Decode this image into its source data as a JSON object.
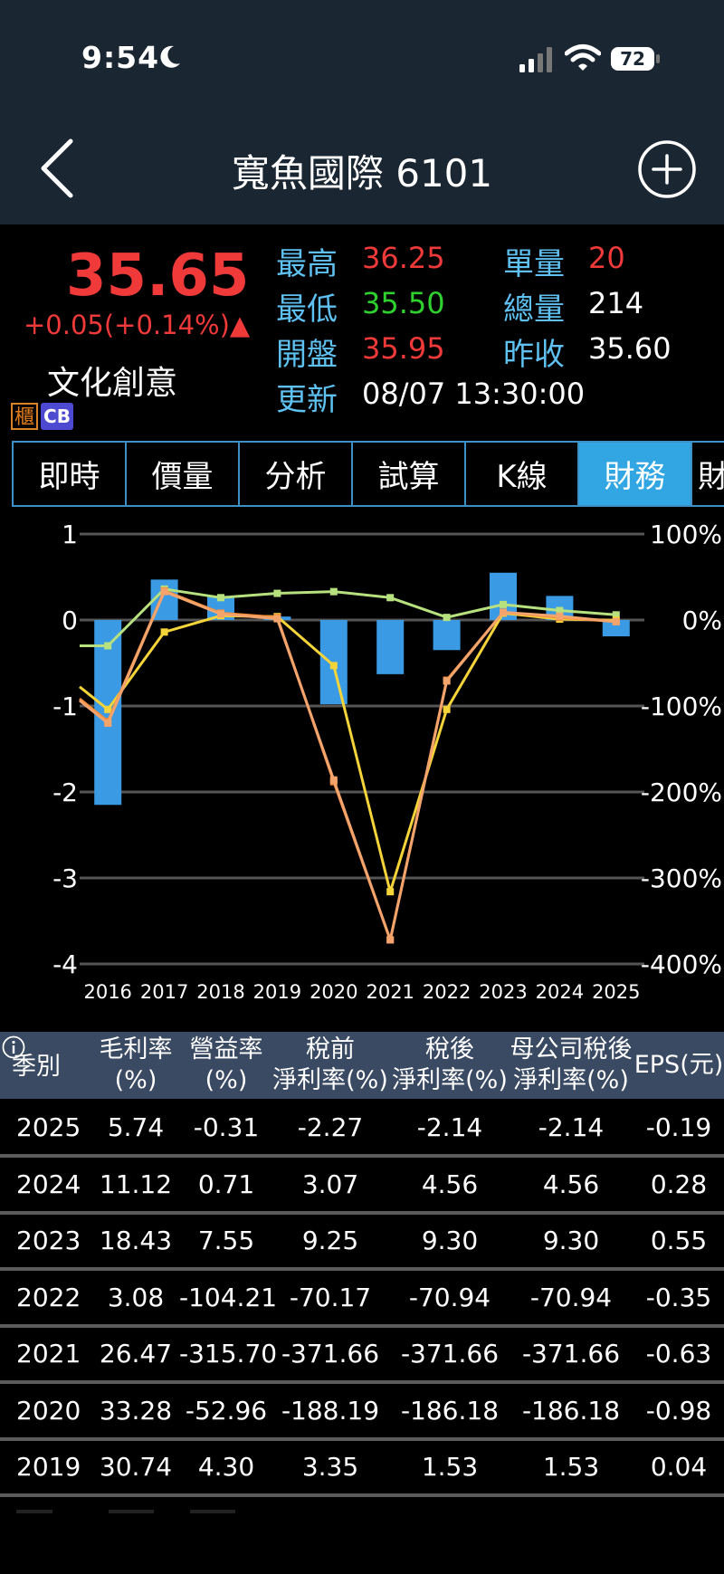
{
  "status": {
    "time": "9:54",
    "battery": "72"
  },
  "nav": {
    "title": "寬魚國際 6101"
  },
  "quote": {
    "price": "35.65",
    "change": "+0.05(+0.14%)▲",
    "industry": "文化創意",
    "badge_gui": "櫃",
    "badge_cb": "CB",
    "stats": {
      "high_label": "最高",
      "high": "36.25",
      "low_label": "最低",
      "low": "35.50",
      "open_label": "開盤",
      "open": "35.95",
      "update_label": "更新",
      "update": "08/07 13:30:00",
      "lot_label": "單量",
      "lot": "20",
      "vol_label": "總量",
      "vol": "214",
      "prev_label": "昨收",
      "prev": "35.60"
    }
  },
  "tabs": [
    "即時",
    "價量",
    "分析",
    "試算",
    "K線",
    "財務",
    "財"
  ],
  "active_tab": 5,
  "colors": {
    "bar": "#3a9be4",
    "gross": "#b7e07e",
    "operating": "#f5d43a",
    "pretax": "#f58e3b",
    "aftertax": "#f2a46c",
    "up": "#f03a3a",
    "down": "#2fd12f"
  },
  "chart_data": {
    "type": "bar+line",
    "categories": [
      "2016",
      "2017",
      "2018",
      "2019",
      "2020",
      "2021",
      "2022",
      "2023",
      "2024",
      "2025"
    ],
    "left_axis": {
      "ticks": [
        "1",
        "0",
        "-1",
        "-2",
        "-3",
        "-4"
      ],
      "range": [
        -4,
        1
      ]
    },
    "right_axis": {
      "ticks": [
        "100%",
        "0%",
        "-100%",
        "-200%",
        "-300%",
        "-400%"
      ],
      "range": [
        -400,
        100
      ]
    },
    "series": [
      {
        "kind": "bar",
        "axis": "left",
        "values": [
          -2.15,
          0.47,
          0.28,
          0.04,
          -0.98,
          -0.63,
          -0.35,
          0.55,
          0.28,
          -0.19
        ]
      },
      {
        "kind": "line",
        "axis": "right",
        "color": "gross",
        "values": [
          -30,
          36,
          26,
          31,
          33,
          26,
          3,
          18,
          11,
          6
        ]
      },
      {
        "kind": "line",
        "axis": "right",
        "color": "operating",
        "values": [
          -104,
          -14,
          5,
          4,
          -53,
          -316,
          -104,
          8,
          1,
          -0.3
        ]
      },
      {
        "kind": "line",
        "axis": "right",
        "color": "pretax",
        "values": [
          -118,
          34,
          8,
          3,
          -188,
          -372,
          -70,
          9,
          3,
          -2
        ]
      },
      {
        "kind": "line",
        "axis": "right",
        "color": "aftertax",
        "values": [
          -120,
          33,
          7,
          1.5,
          -186,
          -372,
          -71,
          9,
          4.5,
          -2
        ]
      }
    ]
  },
  "table": {
    "headers": [
      [
        "季別"
      ],
      [
        "毛利率",
        "(%)"
      ],
      [
        "營益率",
        "(%)"
      ],
      [
        "稅前",
        "淨利率(%)"
      ],
      [
        "稅後",
        "淨利率(%)"
      ],
      [
        "母公司稅後",
        "淨利率(%)"
      ],
      [
        "EPS(元)"
      ]
    ],
    "rows": [
      [
        "2025",
        "5.74",
        "-0.31",
        "-2.27",
        "-2.14",
        "-2.14",
        "-0.19"
      ],
      [
        "2024",
        "11.12",
        "0.71",
        "3.07",
        "4.56",
        "4.56",
        "0.28"
      ],
      [
        "2023",
        "18.43",
        "7.55",
        "9.25",
        "9.30",
        "9.30",
        "0.55"
      ],
      [
        "2022",
        "3.08",
        "-104.21",
        "-70.17",
        "-70.94",
        "-70.94",
        "-0.35"
      ],
      [
        "2021",
        "26.47",
        "-315.70",
        "-371.66",
        "-371.66",
        "-371.66",
        "-0.63"
      ],
      [
        "2020",
        "33.28",
        "-52.96",
        "-188.19",
        "-186.18",
        "-186.18",
        "-0.98"
      ],
      [
        "2019",
        "30.74",
        "4.30",
        "3.35",
        "1.53",
        "1.53",
        "0.04"
      ]
    ]
  }
}
